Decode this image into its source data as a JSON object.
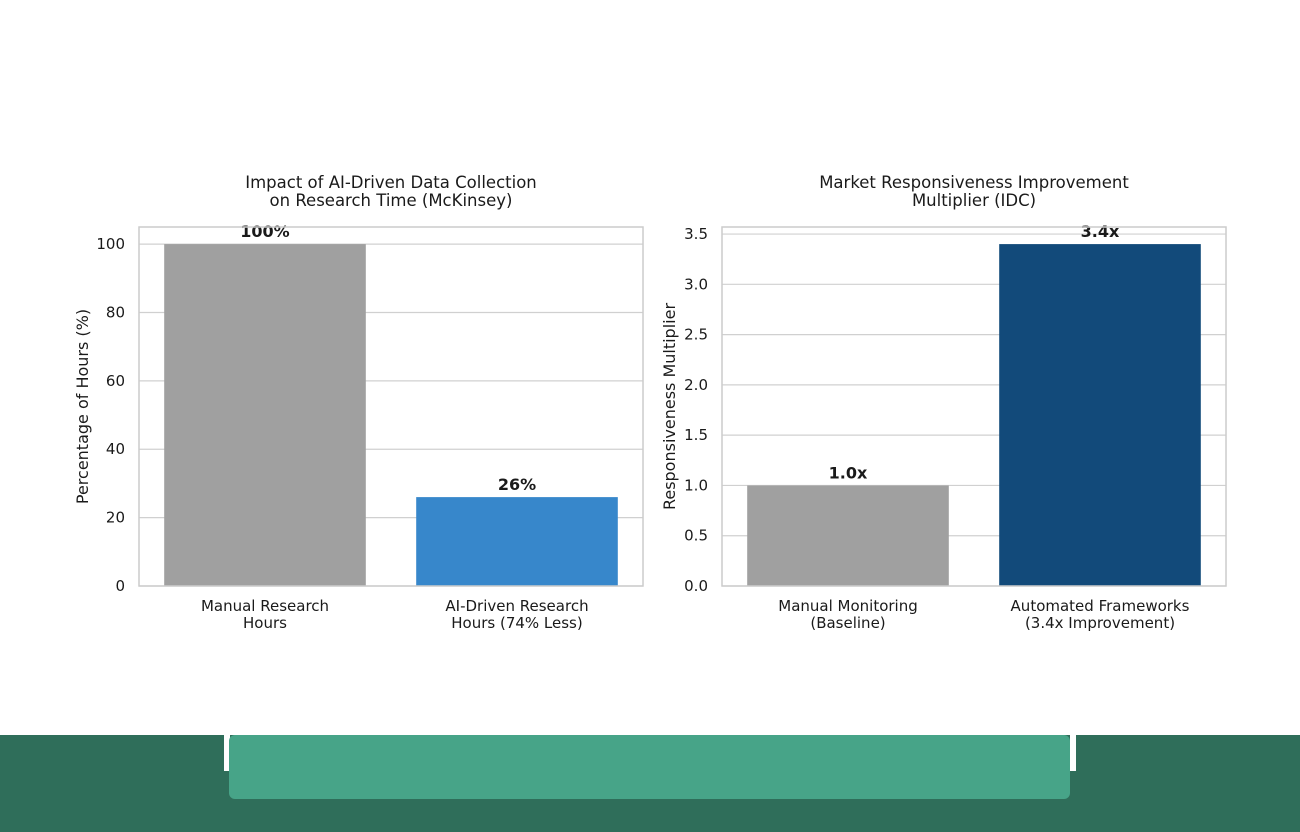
{
  "chart_data": [
    {
      "type": "bar",
      "title": "Impact of AI-Driven Data Collection\non Research Time (McKinsey)",
      "xlabel": "",
      "ylabel": "Percentage of Hours (%)",
      "categories": [
        "Manual Research\nHours",
        "AI-Driven Research\nHours (74% Less)"
      ],
      "values": [
        100,
        26
      ],
      "data_labels": [
        "100%",
        "26%"
      ],
      "colors": [
        "#a0a0a0",
        "#3787cb"
      ],
      "ylim": [
        0,
        105
      ],
      "yticks": [
        0,
        20,
        40,
        60,
        80,
        100
      ],
      "ytick_labels": [
        "0",
        "20",
        "40",
        "60",
        "80",
        "100"
      ],
      "grid": true
    },
    {
      "type": "bar",
      "title": "Market Responsiveness Improvement\nMultiplier (IDC)",
      "xlabel": "",
      "ylabel": "Responsiveness Multiplier",
      "categories": [
        "Manual Monitoring\n(Baseline)",
        "Automated Frameworks\n(3.4x Improvement)"
      ],
      "values": [
        1.0,
        3.4
      ],
      "data_labels": [
        "1.0x",
        "3.4x"
      ],
      "colors": [
        "#a0a0a0",
        "#124a7a"
      ],
      "ylim": [
        0,
        3.57
      ],
      "yticks": [
        0,
        0.5,
        1.0,
        1.5,
        2.0,
        2.5,
        3.0,
        3.5
      ],
      "ytick_labels": [
        "0.0",
        "0.5",
        "1.0",
        "1.5",
        "2.0",
        "2.5",
        "3.0",
        "3.5"
      ],
      "grid": true
    }
  ],
  "footer": {
    "base_color": "#2f6e5a",
    "panel_color": "#47a488"
  }
}
